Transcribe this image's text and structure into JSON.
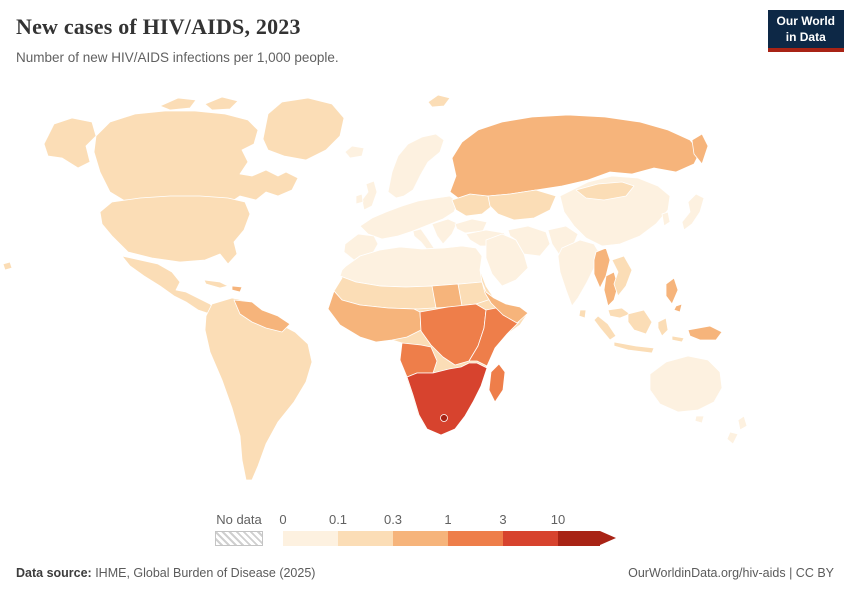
{
  "header": {
    "title": "New cases of HIV/AIDS, 2023",
    "subtitle": "Number of new HIV/AIDS infections per 1,000 people.",
    "logo_line1": "Our World",
    "logo_line2": "in Data",
    "logo_bg_color": "#0d2846",
    "logo_stripe_color": "#a82315"
  },
  "legend": {
    "no_data_label": "No data",
    "ticks": [
      "0",
      "0.1",
      "0.3",
      "1",
      "3",
      "10"
    ],
    "bins": [
      {
        "label": "0-0.1",
        "color": "#fdf1e0"
      },
      {
        "label": "0.1-0.3",
        "color": "#fbddb6"
      },
      {
        "label": "0.3-1",
        "color": "#f6b47b"
      },
      {
        "label": "1-3",
        "color": "#ee7e4a"
      },
      {
        "label": "3-10",
        "color": "#d7432e"
      },
      {
        "label": ">10",
        "color": "#a82315"
      }
    ]
  },
  "footer": {
    "source_label": "Data source:",
    "source_text": " IHME, Global Burden of Disease (2025)",
    "credit": "OurWorldinData.org/hiv-aids | CC BY"
  },
  "chart_data": {
    "type": "heatmap",
    "subtype": "choropleth-world-map",
    "title": "New cases of HIV/AIDS, 2023",
    "subtitle": "Number of new HIV/AIDS infections per 1,000 people.",
    "year": 2023,
    "unit": "new HIV/AIDS infections per 1,000 people",
    "scale": "binned color scale (log-like): 0, 0.1, 0.3, 1, 3, 10+",
    "legend_position": "bottom",
    "regions": {
      "greenland": "0.1-0.3",
      "alaska": "0.1-0.3",
      "canada": "0.1-0.3",
      "arctic-islands": "0.1-0.3",
      "usa": "0.1-0.3",
      "hawaii": "0.1-0.3",
      "mexico-central-america": "0.1-0.3",
      "cuba": "0.1-0.3",
      "hispaniola": "0.3-1",
      "south-america": "0.1-0.3",
      "venezuela-guyanas": "0.3-1",
      "iceland": "0-0.1",
      "united-kingdom": "0-0.1",
      "ireland": "0-0.1",
      "scandinavia": "0-0.1",
      "western-europe": "0-0.1",
      "iberia": "0-0.1",
      "italy": "0-0.1",
      "balkans-greece": "0-0.1",
      "ukraine": "0.1-0.3",
      "svalbard": "0.1-0.3",
      "russia": "0.3-1",
      "kazakhstan-central-asia": "0.1-0.3",
      "turkey": "0-0.1",
      "levant-iraq": "0-0.1",
      "arabian-peninsula": "0-0.1",
      "iran": "0-0.1",
      "afghanistan-pakistan": "0-0.1",
      "india": "0-0.1",
      "sri-lanka": "0.1-0.3",
      "china": "0-0.1",
      "mongolia": "0.1-0.3",
      "korea": "0-0.1",
      "japan": "0-0.1",
      "myanmar": "0.3-1",
      "thailand": "0.3-1",
      "indochina": "0.1-0.3",
      "malaysia": "0.1-0.3",
      "indonesia": "0.1-0.3",
      "philippines": "0.3-1",
      "papua-new-guinea": "0.3-1",
      "australia": "0-0.1",
      "new-zealand": "0-0.1",
      "africa-base": "0.1-0.3",
      "north-africa": "0-0.1",
      "sahel": "0.1-0.3",
      "chad": "0.3-1",
      "west-africa": "0.3-1",
      "central-africa": "1-3",
      "east-africa": "1-3",
      "horn-of-africa": "0.3-1",
      "angola": "1-3",
      "southern-africa": "3-10",
      "lesotho-eswatini": ">10",
      "madagascar": "1-3"
    }
  }
}
